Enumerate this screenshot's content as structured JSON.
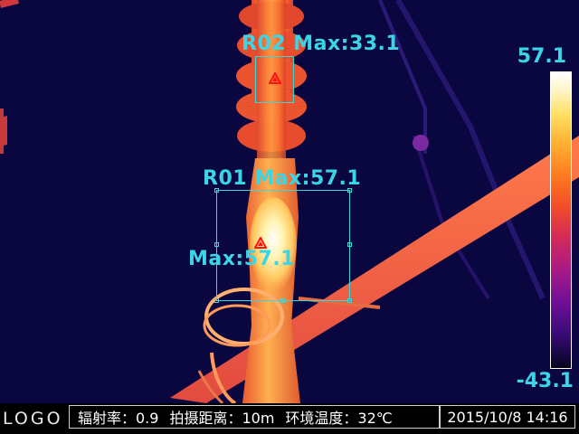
{
  "regions": [
    {
      "id": "R02",
      "label": "R02 Max:33.1"
    },
    {
      "id": "R01",
      "label": "R01 Max:57.1"
    }
  ],
  "hotspot_label": "Max:57.1",
  "scale": {
    "max": "57.1",
    "min": "-43.1"
  },
  "statusbar": {
    "logo": "LOGO",
    "emissivity": "辐射率：0.9",
    "distance": "拍摄距离：10m",
    "ambient_temp": "环境温度：32℃",
    "datetime": "2015/10/8 14:16"
  },
  "palette": {
    "accent": "#3ad6e6",
    "marker": "#ff1010",
    "background": "#0a0740"
  }
}
